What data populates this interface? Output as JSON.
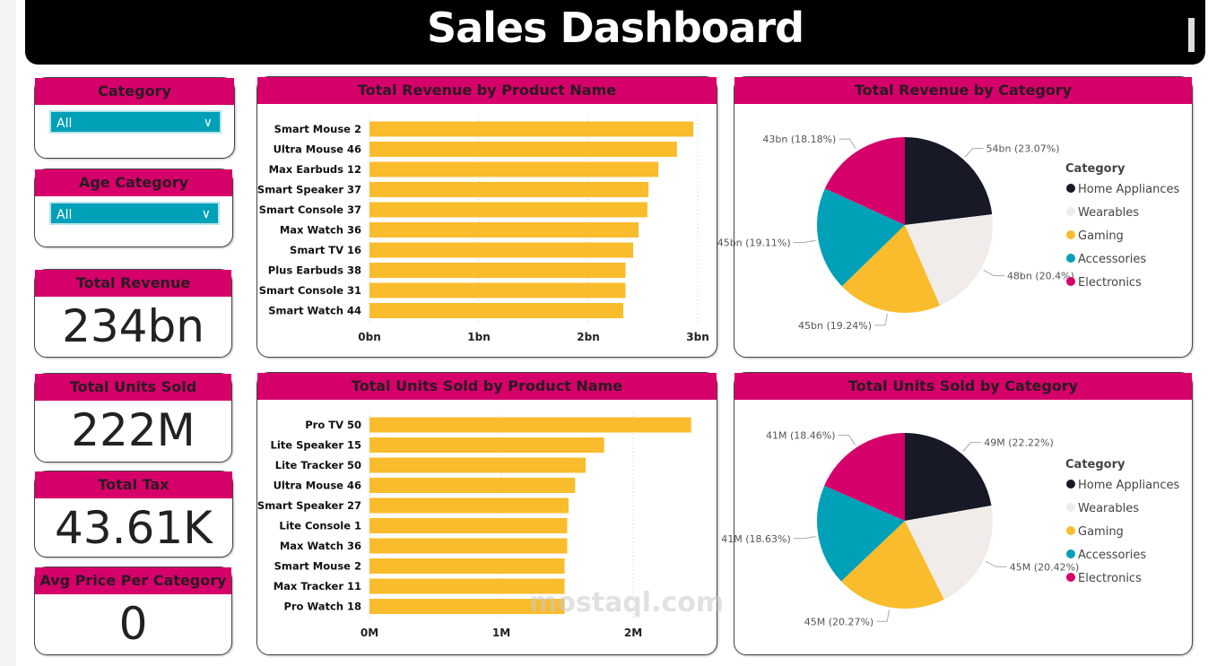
{
  "header": {
    "title": "Sales Dashboard"
  },
  "slicers": [
    {
      "label": "Category",
      "value": "All"
    },
    {
      "label": "Age Category",
      "value": "All"
    }
  ],
  "kpis": [
    {
      "label": "Total Revenue",
      "value": "234bn"
    },
    {
      "label": "Total Units Sold",
      "value": "222M"
    },
    {
      "label": "Total Tax",
      "value": "43.61K"
    },
    {
      "label": "Avg Price Per Category",
      "value": "0"
    }
  ],
  "watermark": "mostaql.com",
  "colors": {
    "accent": "#d6006a",
    "bar": "#f9bc2c",
    "slicer": "#00a0b8"
  },
  "chart_data": [
    {
      "type": "bar",
      "title": "Total Revenue by Product Name",
      "orientation": "horizontal",
      "categories": [
        "Smart Mouse 2",
        "Ultra Mouse 46",
        "Max Earbuds 12",
        "Smart Speaker 37",
        "Smart Console 37",
        "Max Watch 36",
        "Smart TV 16",
        "Plus Earbuds 38",
        "Smart Console 31",
        "Smart Watch 44"
      ],
      "values": [
        2.96,
        2.81,
        2.64,
        2.55,
        2.54,
        2.46,
        2.41,
        2.34,
        2.34,
        2.32
      ],
      "unit": "bn",
      "xlim": [
        0,
        3
      ],
      "ticks": [
        "0bn",
        "1bn",
        "2bn",
        "3bn"
      ],
      "grid": true
    },
    {
      "type": "pie",
      "title": "Total Revenue by Category",
      "legend_title": "Category",
      "legend": "right",
      "categories": [
        "Home Appliances",
        "Wearables",
        "Gaming",
        "Accessories",
        "Electronics"
      ],
      "values": [
        23.07,
        20.4,
        19.24,
        19.11,
        18.18
      ],
      "labels": [
        "54bn (23.07%)",
        "48bn (20.4%)",
        "45bn (19.24%)",
        "45bn (19.11%)",
        "43bn (18.18%)"
      ],
      "colors": [
        "#171a26",
        "#f0ecea",
        "#f9bc2c",
        "#00a0b8",
        "#d6006a"
      ]
    },
    {
      "type": "bar",
      "title": "Total Units Sold by Product Name",
      "orientation": "horizontal",
      "categories": [
        "Pro TV 50",
        "Lite Speaker 15",
        "Lite Tracker 50",
        "Ultra Mouse 46",
        "Smart Speaker 27",
        "Lite Console 1",
        "Max Watch 36",
        "Smart Mouse 2",
        "Max Tracker 11",
        "Pro Watch 18"
      ],
      "values": [
        2.44,
        1.78,
        1.64,
        1.56,
        1.51,
        1.5,
        1.5,
        1.48,
        1.48,
        1.48
      ],
      "unit": "M",
      "xlim": [
        0,
        2.5
      ],
      "ticks": [
        "0M",
        "1M",
        "2M"
      ],
      "grid": true
    },
    {
      "type": "pie",
      "title": "Total Units Sold by Category",
      "legend_title": "Category",
      "legend": "right",
      "categories": [
        "Home Appliances",
        "Wearables",
        "Gaming",
        "Accessories",
        "Electronics"
      ],
      "values": [
        22.22,
        20.42,
        20.27,
        18.63,
        18.46
      ],
      "labels": [
        "49M (22.22%)",
        "45M (20.42%)",
        "45M (20.27%)",
        "41M (18.63%)",
        "41M (18.46%)"
      ],
      "colors": [
        "#171a26",
        "#f0ecea",
        "#f9bc2c",
        "#00a0b8",
        "#d6006a"
      ]
    }
  ]
}
